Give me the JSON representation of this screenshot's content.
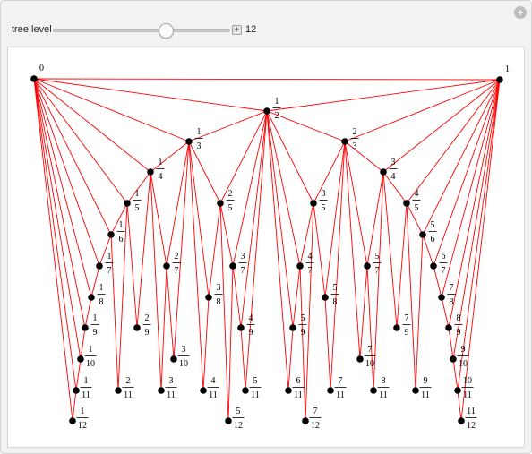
{
  "controls": {
    "slider_label": "tree level",
    "slider_value": "12",
    "slider_min": 1,
    "slider_max": 18,
    "slider_level": 12,
    "plus_icon": "plus-icon"
  },
  "corner": {
    "icon": "plus-circle-icon"
  },
  "tree": {
    "edge_color": "#ff0000",
    "node_color": "#000000",
    "nodes": [
      {
        "label": "0"
      },
      {
        "label": "1"
      },
      {
        "num": "1",
        "den": "2"
      },
      {
        "num": "1",
        "den": "3"
      },
      {
        "num": "2",
        "den": "3"
      },
      {
        "num": "1",
        "den": "4"
      },
      {
        "num": "3",
        "den": "4"
      },
      {
        "num": "1",
        "den": "5"
      },
      {
        "num": "2",
        "den": "5"
      },
      {
        "num": "3",
        "den": "5"
      },
      {
        "num": "4",
        "den": "5"
      },
      {
        "num": "1",
        "den": "6"
      },
      {
        "num": "5",
        "den": "6"
      },
      {
        "num": "1",
        "den": "7"
      },
      {
        "num": "2",
        "den": "7"
      },
      {
        "num": "3",
        "den": "7"
      },
      {
        "num": "4",
        "den": "7"
      },
      {
        "num": "5",
        "den": "7"
      },
      {
        "num": "6",
        "den": "7"
      },
      {
        "num": "1",
        "den": "8"
      },
      {
        "num": "3",
        "den": "8"
      },
      {
        "num": "5",
        "den": "8"
      },
      {
        "num": "7",
        "den": "8"
      },
      {
        "num": "1",
        "den": "9"
      },
      {
        "num": "2",
        "den": "9"
      },
      {
        "num": "4",
        "den": "9"
      },
      {
        "num": "5",
        "den": "9"
      },
      {
        "num": "7",
        "den": "9"
      },
      {
        "num": "8",
        "den": "9"
      },
      {
        "num": "1",
        "den": "10"
      },
      {
        "num": "3",
        "den": "10"
      },
      {
        "num": "7",
        "den": "10"
      },
      {
        "num": "9",
        "den": "10"
      },
      {
        "num": "1",
        "den": "11"
      },
      {
        "num": "2",
        "den": "11"
      },
      {
        "num": "3",
        "den": "11"
      },
      {
        "num": "4",
        "den": "11"
      },
      {
        "num": "5",
        "den": "11"
      },
      {
        "num": "6",
        "den": "11"
      },
      {
        "num": "7",
        "den": "11"
      },
      {
        "num": "8",
        "den": "11"
      },
      {
        "num": "9",
        "den": "11"
      },
      {
        "num": "10",
        "den": "11"
      },
      {
        "num": "1",
        "den": "12"
      },
      {
        "num": "5",
        "den": "12"
      },
      {
        "num": "7",
        "den": "12"
      },
      {
        "num": "11",
        "den": "12"
      }
    ]
  }
}
